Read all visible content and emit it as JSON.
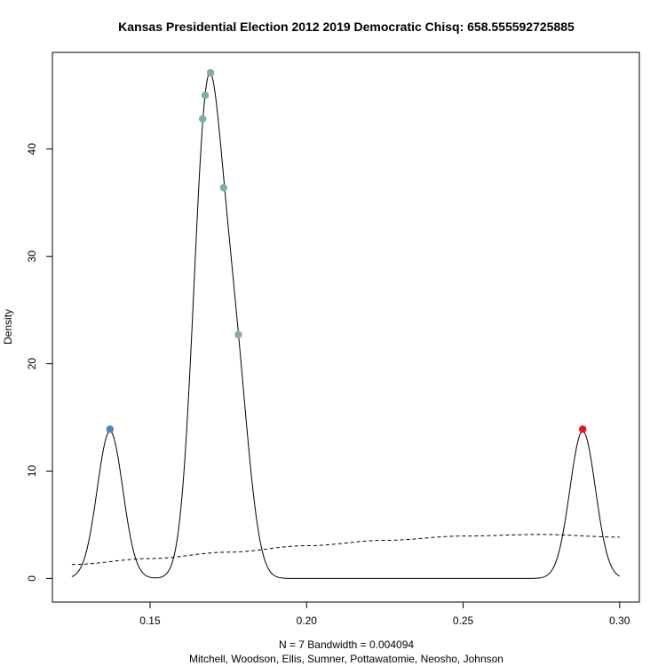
{
  "chart_data": {
    "type": "line",
    "title": "Kansas Presidential Election 2012 2019 Democratic Chisq: 658.555592725885",
    "xlabel": "N = 7   Bandwidth = 0.004094",
    "sublabel": "Mitchell, Woodson, Ellis, Sumner, Pottawatomie, Neosho, Johnson",
    "ylabel": "Density",
    "xlim": [
      0.1188,
      0.3063
    ],
    "ylim": [
      -2.2,
      49.0
    ],
    "x_ticks": [
      0.15,
      0.2,
      0.25,
      0.3
    ],
    "x_tick_labels": [
      "0.15",
      "0.20",
      "0.25",
      "0.30"
    ],
    "y_ticks": [
      0,
      10,
      20,
      30,
      40
    ],
    "y_tick_labels": [
      "0",
      "10",
      "20",
      "30",
      "40"
    ],
    "kde": {
      "bandwidth": 0.004094,
      "sample": [
        0.1372,
        0.1668,
        0.1676,
        0.1693,
        0.1735,
        0.1782,
        0.2882
      ],
      "x_range": [
        0.125,
        0.3
      ]
    },
    "reference_curve": {
      "style": "dashed",
      "x": [
        0.125,
        0.15,
        0.175,
        0.2,
        0.225,
        0.25,
        0.275,
        0.3
      ],
      "y": [
        1.3,
        1.85,
        2.45,
        3.05,
        3.55,
        3.95,
        4.1,
        3.85
      ]
    },
    "points": [
      {
        "label": "Mitchell",
        "x": 0.1372,
        "y": 13.9,
        "color": "#4f81bd"
      },
      {
        "label": "Woodson",
        "x": 0.1668,
        "y": 42.8,
        "color": "#7fb09a"
      },
      {
        "label": "Ellis",
        "x": 0.1676,
        "y": 45.0,
        "color": "#7fb09a"
      },
      {
        "label": "Sumner",
        "x": 0.1693,
        "y": 47.1,
        "color": "#7fb09a"
      },
      {
        "label": "Pottawatomie",
        "x": 0.1735,
        "y": 36.4,
        "color": "#7fb09a"
      },
      {
        "label": "Neosho",
        "x": 0.1782,
        "y": 22.7,
        "color": "#7fb09a"
      },
      {
        "label": "Johnson",
        "x": 0.2882,
        "y": 13.9,
        "color": "#ee1111"
      }
    ]
  }
}
